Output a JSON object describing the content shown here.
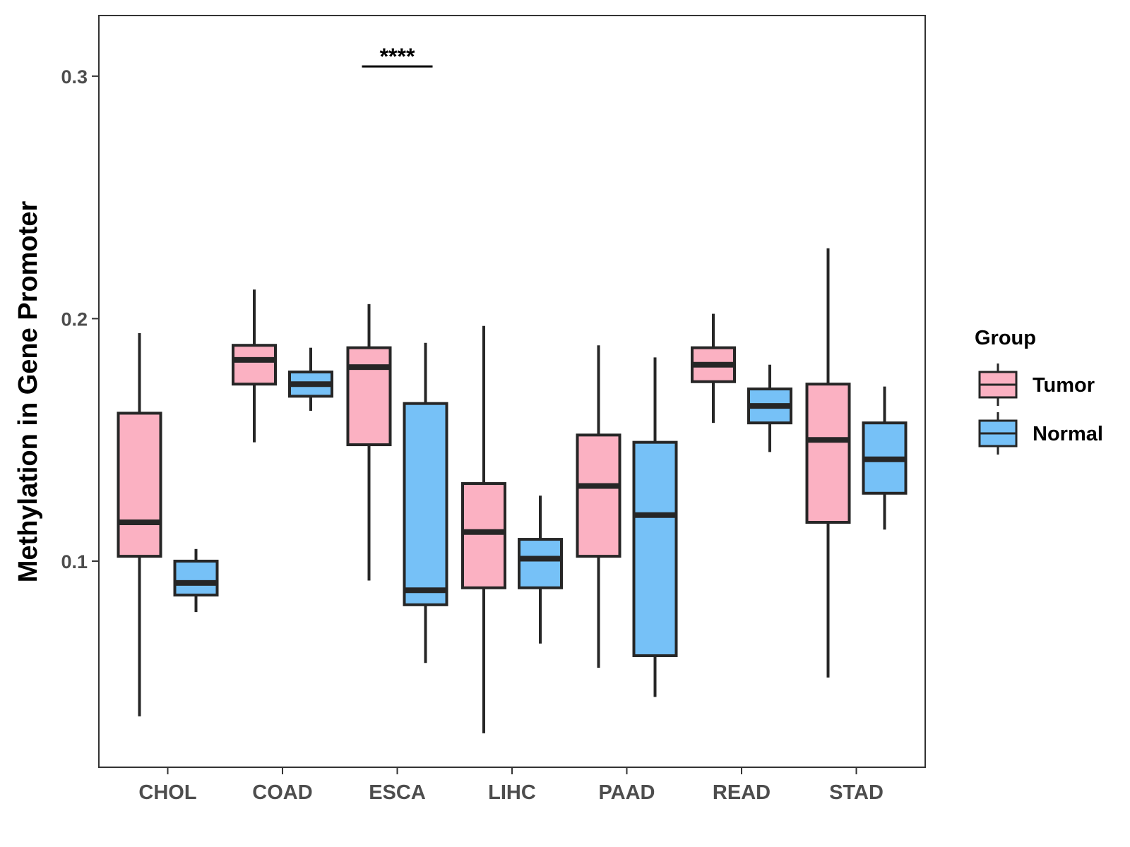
{
  "chart_data": {
    "type": "boxplot",
    "ylabel": "Methylation in Gene Promoter",
    "xlabel": "",
    "ylim": [
      0.015,
      0.325
    ],
    "yticks": [
      0.1,
      0.2,
      0.3
    ],
    "ytick_labels": [
      "0.1",
      "0.2",
      "0.3"
    ],
    "categories": [
      "CHOL",
      "COAD",
      "ESCA",
      "LIHC",
      "PAAD",
      "READ",
      "STAD"
    ],
    "legend": {
      "title": "Group",
      "position": "right",
      "entries": [
        {
          "name": "Tumor",
          "color": "#fbb1c2"
        },
        {
          "name": "Normal",
          "color": "#76c1f7"
        }
      ]
    },
    "series": [
      {
        "name": "Tumor",
        "color": "#fbb1c2",
        "boxes": [
          {
            "category": "CHOL",
            "min": 0.036,
            "q1": 0.102,
            "median": 0.116,
            "q3": 0.161,
            "max": 0.194
          },
          {
            "category": "COAD",
            "min": 0.149,
            "q1": 0.173,
            "median": 0.183,
            "q3": 0.189,
            "max": 0.212
          },
          {
            "category": "ESCA",
            "min": 0.092,
            "q1": 0.148,
            "median": 0.18,
            "q3": 0.188,
            "max": 0.206
          },
          {
            "category": "LIHC",
            "min": 0.029,
            "q1": 0.089,
            "median": 0.112,
            "q3": 0.132,
            "max": 0.197
          },
          {
            "category": "PAAD",
            "min": 0.056,
            "q1": 0.102,
            "median": 0.131,
            "q3": 0.152,
            "max": 0.189
          },
          {
            "category": "READ",
            "min": 0.157,
            "q1": 0.174,
            "median": 0.181,
            "q3": 0.188,
            "max": 0.202
          },
          {
            "category": "STAD",
            "min": 0.052,
            "q1": 0.116,
            "median": 0.15,
            "q3": 0.173,
            "max": 0.229
          }
        ]
      },
      {
        "name": "Normal",
        "color": "#76c1f7",
        "boxes": [
          {
            "category": "CHOL",
            "min": 0.079,
            "q1": 0.086,
            "median": 0.091,
            "q3": 0.1,
            "max": 0.105
          },
          {
            "category": "COAD",
            "min": 0.162,
            "q1": 0.168,
            "median": 0.173,
            "q3": 0.178,
            "max": 0.188
          },
          {
            "category": "ESCA",
            "min": 0.058,
            "q1": 0.082,
            "median": 0.088,
            "q3": 0.165,
            "max": 0.19
          },
          {
            "category": "LIHC",
            "min": 0.066,
            "q1": 0.089,
            "median": 0.101,
            "q3": 0.109,
            "max": 0.127
          },
          {
            "category": "PAAD",
            "min": 0.044,
            "q1": 0.061,
            "median": 0.119,
            "q3": 0.149,
            "max": 0.184
          },
          {
            "category": "READ",
            "min": 0.145,
            "q1": 0.157,
            "median": 0.164,
            "q3": 0.171,
            "max": 0.181
          },
          {
            "category": "STAD",
            "min": 0.113,
            "q1": 0.128,
            "median": 0.142,
            "q3": 0.157,
            "max": 0.172
          }
        ]
      }
    ],
    "annotations": [
      {
        "category": "ESCA",
        "text": "****",
        "y": 0.304
      }
    ]
  }
}
